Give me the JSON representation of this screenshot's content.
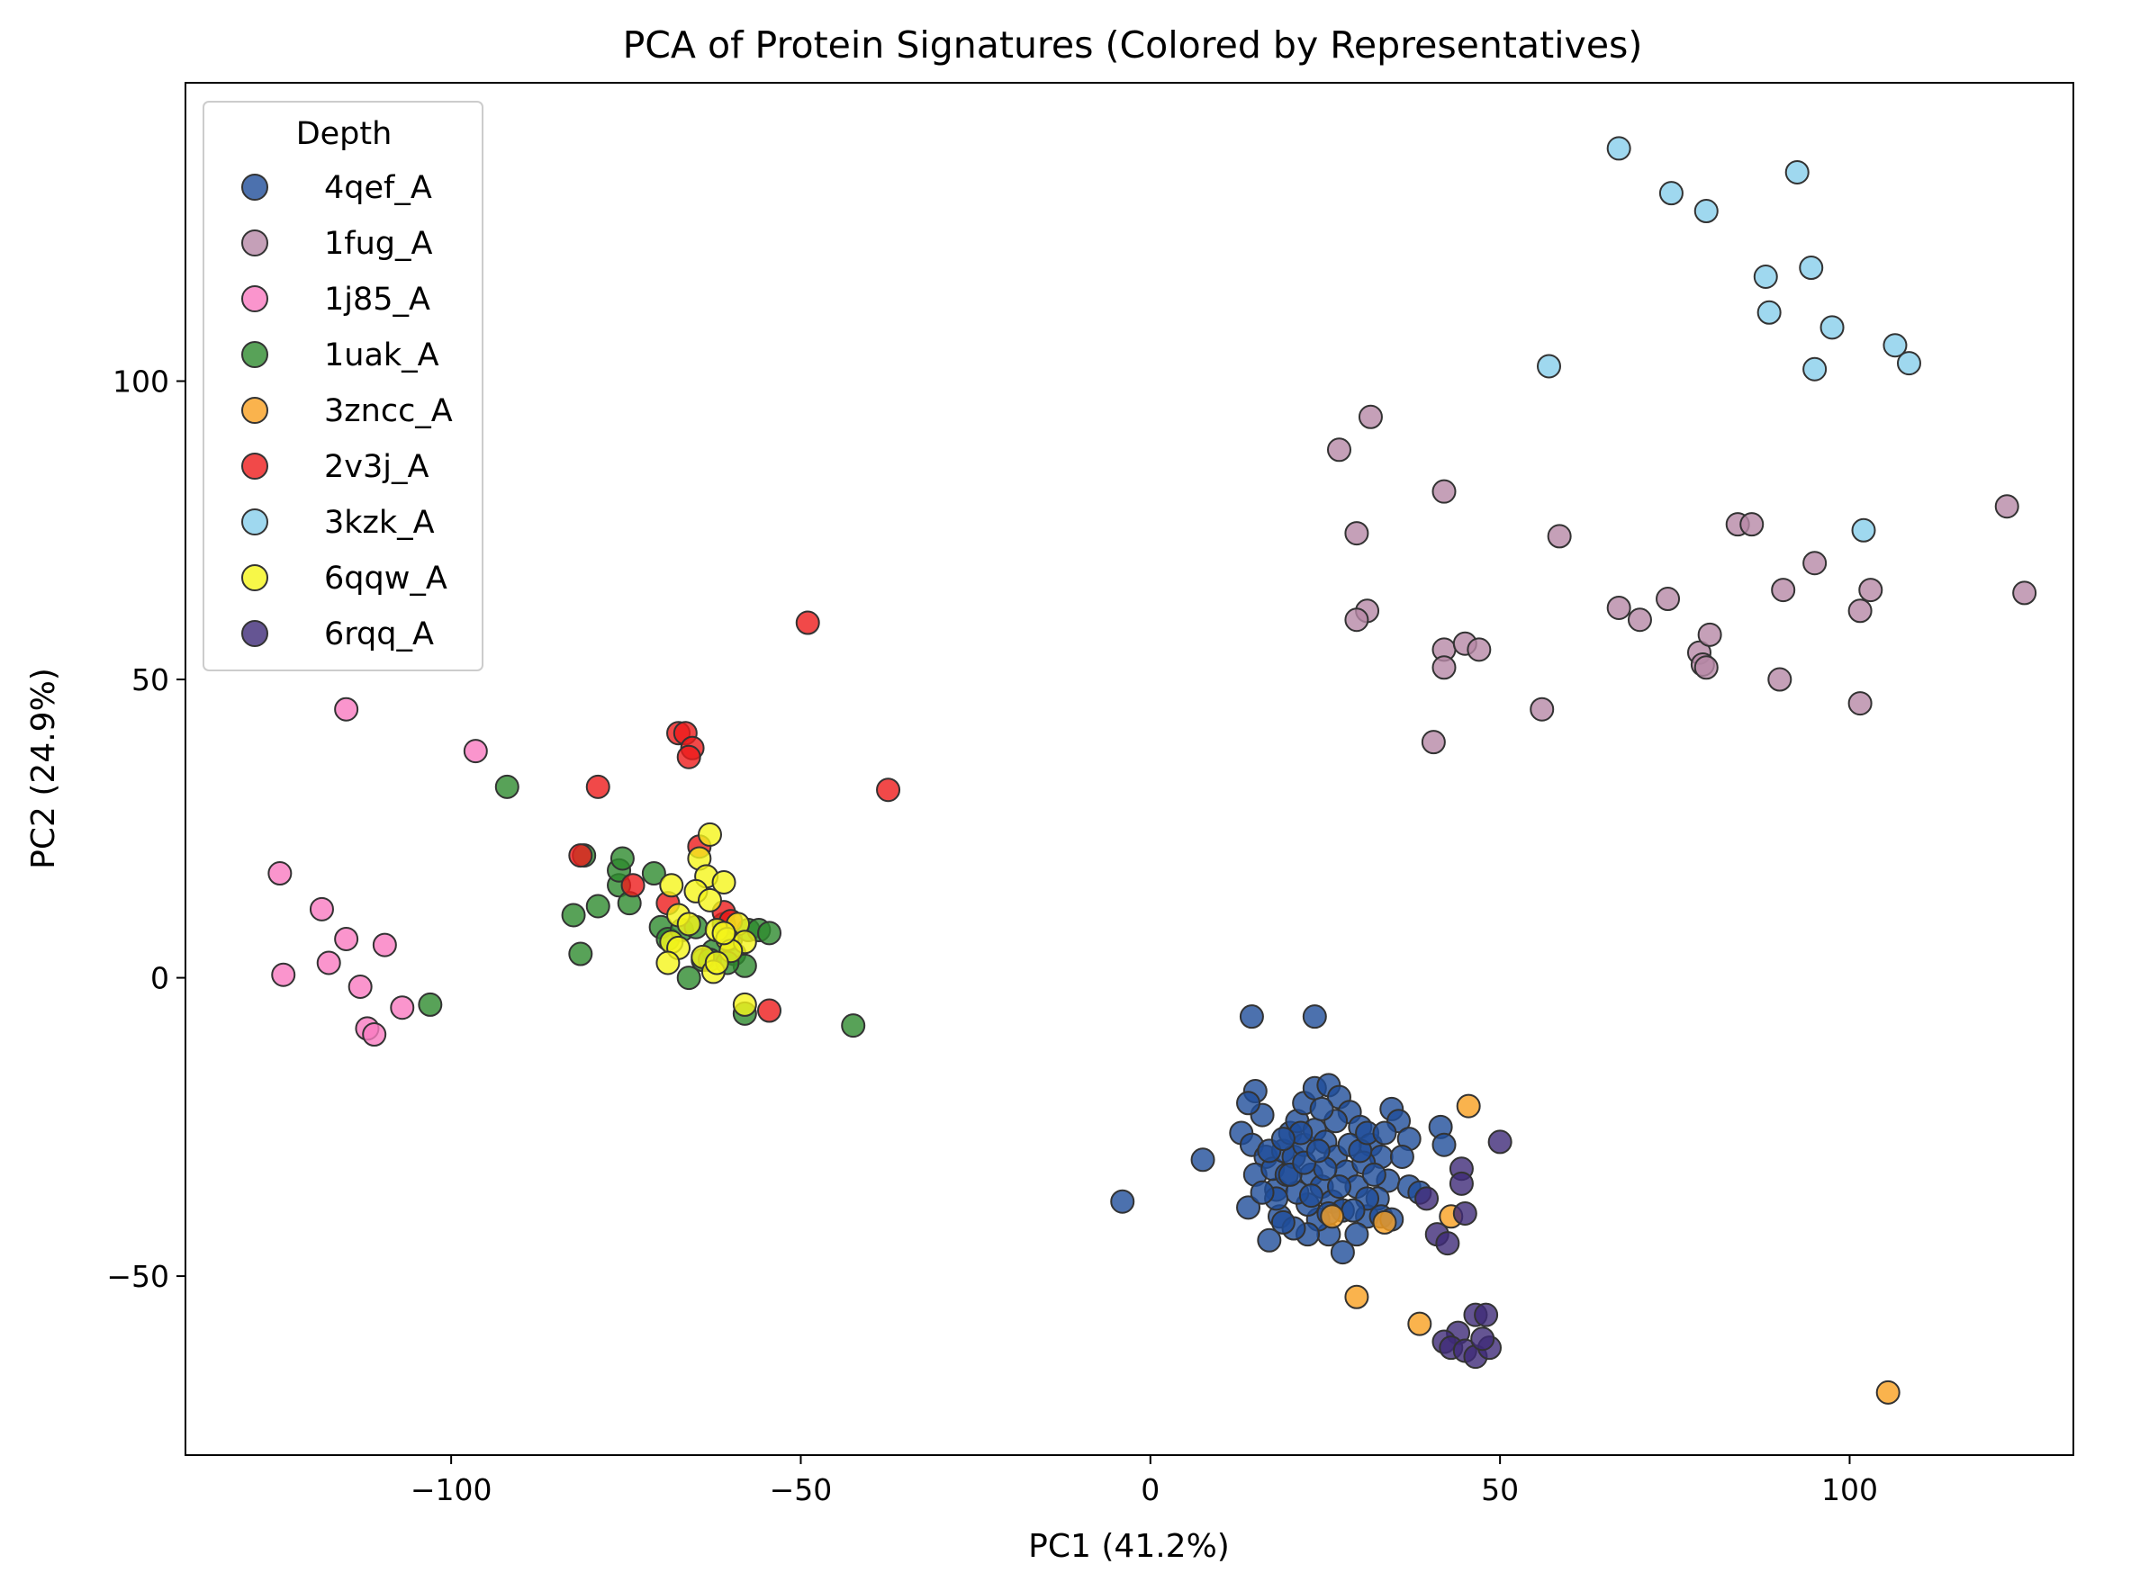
{
  "chart_data": {
    "type": "scatter",
    "title": "PCA of Protein Signatures (Colored by Representatives)",
    "xlabel": "PC1 (41.2%)",
    "ylabel": "PC2 (24.9%)",
    "xlim": [
      -138,
      132
    ],
    "ylim": [
      -80,
      150
    ],
    "xticks": [
      -100,
      -50,
      0,
      50,
      100
    ],
    "xtick_labels": [
      "−100",
      "−50",
      "0",
      "50",
      "100"
    ],
    "yticks": [
      -50,
      0,
      50,
      100
    ],
    "ytick_labels": [
      "−50",
      "0",
      "50",
      "100"
    ],
    "grid": false,
    "legend": {
      "title": "Depth",
      "placement": "top-left"
    },
    "series": [
      {
        "name": "4qef_A",
        "color": "#1f4e9a",
        "points": [
          [
            -4,
            -37.5
          ],
          [
            7.5,
            -30.5
          ],
          [
            14.5,
            -6.5
          ],
          [
            23.5,
            -6.5
          ],
          [
            15,
            -19
          ],
          [
            16,
            -23
          ],
          [
            14,
            -21
          ],
          [
            13,
            -26
          ],
          [
            14.5,
            -28
          ],
          [
            16.5,
            -30
          ],
          [
            15,
            -33
          ],
          [
            14,
            -38.5
          ],
          [
            17,
            -44
          ],
          [
            18.5,
            -40
          ],
          [
            18,
            -35.5
          ],
          [
            17.5,
            -32
          ],
          [
            19,
            -29
          ],
          [
            20,
            -26
          ],
          [
            21,
            -24
          ],
          [
            22,
            -21
          ],
          [
            23.5,
            -18.5
          ],
          [
            25.5,
            -18
          ],
          [
            27,
            -20
          ],
          [
            28.5,
            -22.5
          ],
          [
            30,
            -25
          ],
          [
            31.5,
            -28
          ],
          [
            33,
            -30
          ],
          [
            34.5,
            -22
          ],
          [
            35.5,
            -24
          ],
          [
            37,
            -27
          ],
          [
            36,
            -30
          ],
          [
            34,
            -34
          ],
          [
            32.5,
            -37
          ],
          [
            31,
            -40
          ],
          [
            29.5,
            -43
          ],
          [
            27.5,
            -46
          ],
          [
            25.5,
            -43
          ],
          [
            24,
            -40.5
          ],
          [
            22.5,
            -38
          ],
          [
            21,
            -36
          ],
          [
            19.5,
            -33
          ],
          [
            20.5,
            -30
          ],
          [
            22,
            -28
          ],
          [
            23.5,
            -25.5
          ],
          [
            25,
            -27.5
          ],
          [
            26.5,
            -30
          ],
          [
            28,
            -32.5
          ],
          [
            29.5,
            -35
          ],
          [
            31,
            -37
          ],
          [
            33,
            -40
          ],
          [
            34.5,
            -40.5
          ],
          [
            37,
            -35
          ],
          [
            38.5,
            -36
          ],
          [
            41.5,
            -25
          ],
          [
            42,
            -28
          ],
          [
            22.5,
            -43
          ],
          [
            20.5,
            -42
          ],
          [
            19,
            -41
          ],
          [
            23,
            -33
          ],
          [
            24.5,
            -35
          ],
          [
            26,
            -37.5
          ],
          [
            27.5,
            -39
          ],
          [
            29,
            -39
          ],
          [
            30.5,
            -31
          ],
          [
            32,
            -33
          ],
          [
            25,
            -32
          ],
          [
            27,
            -35
          ],
          [
            28.5,
            -28
          ],
          [
            26.5,
            -24
          ],
          [
            24.5,
            -22
          ],
          [
            21.5,
            -26
          ],
          [
            20,
            -33
          ],
          [
            18,
            -37
          ],
          [
            16,
            -36
          ],
          [
            17,
            -29
          ],
          [
            22,
            -31
          ],
          [
            24,
            -29
          ],
          [
            19,
            -27
          ],
          [
            23,
            -36.5
          ],
          [
            25.5,
            -39.5
          ],
          [
            30,
            -29
          ],
          [
            31,
            -26
          ],
          [
            33.5,
            -26
          ]
        ]
      },
      {
        "name": "1fug_A",
        "color": "#b788a6",
        "points": [
          [
            27,
            88.5
          ],
          [
            31.5,
            94
          ],
          [
            42,
            81.5
          ],
          [
            29.5,
            74.5
          ],
          [
            58.5,
            74
          ],
          [
            31,
            61.5
          ],
          [
            29.5,
            60
          ],
          [
            42,
            55
          ],
          [
            45,
            56
          ],
          [
            47,
            55
          ],
          [
            42,
            52
          ],
          [
            40.5,
            39.5
          ],
          [
            56,
            45
          ],
          [
            67,
            62
          ],
          [
            70,
            60
          ],
          [
            74,
            63.5
          ],
          [
            78.5,
            54.5
          ],
          [
            79,
            52.5
          ],
          [
            80,
            57.5
          ],
          [
            79.5,
            52
          ],
          [
            84,
            76
          ],
          [
            86,
            76
          ],
          [
            90.5,
            65
          ],
          [
            95,
            69.5
          ],
          [
            90,
            50
          ],
          [
            101.5,
            46
          ],
          [
            101.5,
            61.5
          ],
          [
            103,
            65
          ],
          [
            122.5,
            79
          ],
          [
            125,
            64.5
          ]
        ]
      },
      {
        "name": "1j85_A",
        "color": "#f97ac0",
        "points": [
          [
            -115,
            45
          ],
          [
            -96.5,
            38
          ],
          [
            -124.5,
            17.5
          ],
          [
            -118.5,
            11.5
          ],
          [
            -124,
            0.5
          ],
          [
            -117.5,
            2.5
          ],
          [
            -115,
            6.5
          ],
          [
            -109.5,
            5.5
          ],
          [
            -113,
            -1.5
          ],
          [
            -107,
            -5
          ],
          [
            -112,
            -8.5
          ],
          [
            -111,
            -9.5
          ]
        ]
      },
      {
        "name": "1uak_A",
        "color": "#2e8b2e",
        "points": [
          [
            -92,
            32
          ],
          [
            -103,
            -4.5
          ],
          [
            -81,
            20.5
          ],
          [
            -82.5,
            10.5
          ],
          [
            -81.5,
            4
          ],
          [
            -79,
            12
          ],
          [
            -76,
            15.5
          ],
          [
            -76,
            18
          ],
          [
            -75.5,
            20
          ],
          [
            -74.5,
            12.5
          ],
          [
            -71,
            17.5
          ],
          [
            -70,
            8.5
          ],
          [
            -69,
            6.5
          ],
          [
            -67,
            8
          ],
          [
            -66,
            0
          ],
          [
            -65,
            8.5
          ],
          [
            -64,
            3
          ],
          [
            -62.5,
            4.5
          ],
          [
            -61,
            9
          ],
          [
            -60,
            6.5
          ],
          [
            -59.5,
            4
          ],
          [
            -58,
            2
          ],
          [
            -57.5,
            8
          ],
          [
            -56,
            8
          ],
          [
            -54.5,
            7.5
          ],
          [
            -58,
            -6
          ],
          [
            -42.5,
            -8
          ],
          [
            -63,
            3
          ],
          [
            -60.5,
            2.5
          ]
        ]
      },
      {
        "name": "3zncc_A",
        "color": "#f9a020",
        "points": [
          [
            45.5,
            -21.5
          ],
          [
            26,
            -40
          ],
          [
            33.5,
            -41
          ],
          [
            29.5,
            -53.5
          ],
          [
            43,
            -40
          ],
          [
            38.5,
            -58
          ],
          [
            105.5,
            -69.5
          ]
        ]
      },
      {
        "name": "2v3j_A",
        "color": "#ee1c1c",
        "points": [
          [
            -49,
            59.5
          ],
          [
            -37.5,
            31.5
          ],
          [
            -79,
            32
          ],
          [
            -81.5,
            20.5
          ],
          [
            -74,
            15.5
          ],
          [
            -67.5,
            41
          ],
          [
            -66.5,
            41
          ],
          [
            -65.5,
            38.5
          ],
          [
            -66,
            37
          ],
          [
            -64.5,
            22
          ],
          [
            -69,
            12.5
          ],
          [
            -61,
            11
          ],
          [
            -60,
            9.5
          ],
          [
            -54.5,
            -5.5
          ]
        ]
      },
      {
        "name": "3kzk_A",
        "color": "#87ceeb",
        "points": [
          [
            67,
            139
          ],
          [
            74.5,
            131.5
          ],
          [
            79.5,
            128.5
          ],
          [
            92.5,
            135
          ],
          [
            88,
            117.5
          ],
          [
            94.5,
            119
          ],
          [
            88.5,
            111.5
          ],
          [
            97.5,
            109
          ],
          [
            57,
            102.5
          ],
          [
            95,
            102
          ],
          [
            106.5,
            106
          ],
          [
            108.5,
            103
          ],
          [
            102,
            75
          ]
        ]
      },
      {
        "name": "6qqw_A",
        "color": "#f5f51a",
        "points": [
          [
            -63,
            24
          ],
          [
            -64.5,
            20
          ],
          [
            -68.5,
            15.5
          ],
          [
            -63.5,
            17
          ],
          [
            -61,
            16
          ],
          [
            -65,
            14.5
          ],
          [
            -63,
            13
          ],
          [
            -67.5,
            10.5
          ],
          [
            -66,
            9
          ],
          [
            -62,
            8
          ],
          [
            -59,
            9
          ],
          [
            -68.5,
            6
          ],
          [
            -67.5,
            5
          ],
          [
            -60.5,
            6.5
          ],
          [
            -58,
            6
          ],
          [
            -60,
            4.5
          ],
          [
            -64,
            3.5
          ],
          [
            -69,
            2.5
          ],
          [
            -62.5,
            1
          ],
          [
            -58,
            -4.5
          ],
          [
            -61,
            7.5
          ],
          [
            -62,
            2.5
          ]
        ]
      },
      {
        "name": "6rqq_A",
        "color": "#3f2a78",
        "points": [
          [
            50,
            -27.5
          ],
          [
            44.5,
            -32
          ],
          [
            44.5,
            -34.5
          ],
          [
            39.5,
            -37
          ],
          [
            45,
            -39.5
          ],
          [
            41,
            -43
          ],
          [
            42.5,
            -44.5
          ],
          [
            46.5,
            -56.5
          ],
          [
            48,
            -56.5
          ],
          [
            44,
            -59.5
          ],
          [
            42,
            -61
          ],
          [
            43,
            -62
          ],
          [
            45,
            -62.5
          ],
          [
            46.5,
            -63.5
          ],
          [
            48.5,
            -62
          ],
          [
            47.5,
            -60.5
          ]
        ]
      }
    ]
  }
}
